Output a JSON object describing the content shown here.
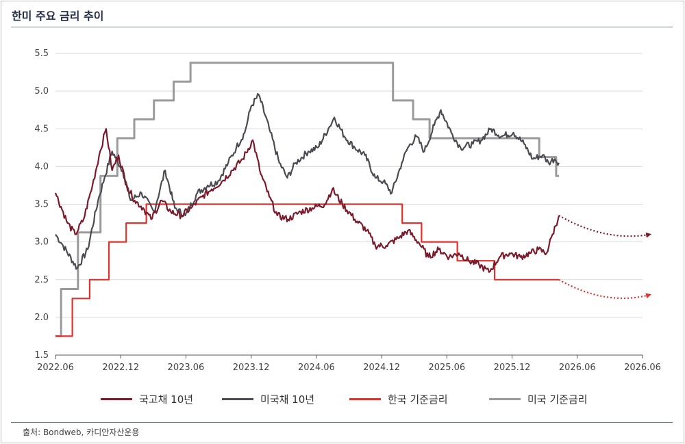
{
  "header": {
    "title": "한미 주요 금리 추이"
  },
  "footer": {
    "source": "출처: Bondweb, 카디안자산운용"
  },
  "colors": {
    "kr10y": "#7a1a2a",
    "us10y": "#4a4a52",
    "krBase": "#e0322d",
    "usBase": "#9a9a9a",
    "grid": "#d9d9d9"
  },
  "chart_data": {
    "type": "line",
    "title": "",
    "xlabel": "",
    "ylabel": "",
    "ylim": [
      1.5,
      5.5
    ],
    "yticks": [
      "1.5",
      "2.0",
      "2.5",
      "3.0",
      "3.5",
      "4.0",
      "4.5",
      "5.0",
      "5.5"
    ],
    "xticks": [
      "2022.06",
      "2022.12",
      "2023.06",
      "2023.12",
      "2024.06",
      "2024.12",
      "2025.06",
      "2025.12",
      "2026.06",
      "2026.06"
    ],
    "grid": "horizontal",
    "legend": "bottom",
    "series": [
      {
        "name": "국고채 10년",
        "kind": "line",
        "x": [
          "2022-06-01",
          "2022-07-01",
          "2022-07-20",
          "2022-08-10",
          "2022-09-01",
          "2022-09-20",
          "2022-10-05",
          "2022-10-20",
          "2022-11-05",
          "2022-11-25",
          "2022-12-15",
          "2023-01-05",
          "2023-01-25",
          "2023-02-20",
          "2023-03-15",
          "2023-04-10",
          "2023-05-05",
          "2023-06-01",
          "2023-06-25",
          "2023-07-20",
          "2023-08-15",
          "2023-09-10",
          "2023-10-05",
          "2023-10-25",
          "2023-11-15",
          "2023-12-05",
          "2024-01-01",
          "2024-02-01",
          "2024-03-01",
          "2024-04-01",
          "2024-04-20",
          "2024-05-15",
          "2024-06-15",
          "2024-07-15",
          "2024-08-05",
          "2024-09-01",
          "2024-10-01",
          "2024-10-25",
          "2024-11-20",
          "2024-12-15",
          "2025-01-10",
          "2025-02-05",
          "2025-03-01",
          "2025-03-25",
          "2025-04-20",
          "2025-05-15",
          "2025-06-10",
          "2025-07-05",
          "2025-08-01",
          "2025-08-25",
          "2025-09-15",
          "2025-10-05",
          "2025-10-20",
          "2025-11-05"
        ],
        "y": [
          3.65,
          3.25,
          3.1,
          3.3,
          3.75,
          4.2,
          4.5,
          3.95,
          4.15,
          3.75,
          3.55,
          3.45,
          3.3,
          3.55,
          3.4,
          3.35,
          3.45,
          3.6,
          3.7,
          3.8,
          3.95,
          4.1,
          4.35,
          3.9,
          3.6,
          3.35,
          3.3,
          3.4,
          3.45,
          3.5,
          3.7,
          3.5,
          3.3,
          3.15,
          2.95,
          2.95,
          3.05,
          3.15,
          3.0,
          2.8,
          2.9,
          2.8,
          2.85,
          2.75,
          2.7,
          2.6,
          2.8,
          2.85,
          2.8,
          2.85,
          2.9,
          2.85,
          3.1,
          3.35
        ]
      },
      {
        "name": "미국채 10년",
        "kind": "line",
        "x": [
          "2022-06-01",
          "2022-06-20",
          "2022-07-25",
          "2022-08-20",
          "2022-09-15",
          "2022-10-01",
          "2022-10-20",
          "2022-11-15",
          "2022-12-05",
          "2023-01-01",
          "2023-02-01",
          "2023-03-01",
          "2023-03-25",
          "2023-04-20",
          "2023-05-20",
          "2023-06-15",
          "2023-07-10",
          "2023-08-05",
          "2023-08-25",
          "2023-09-15",
          "2023-10-01",
          "2023-10-20",
          "2023-11-15",
          "2023-12-10",
          "2023-12-30",
          "2024-01-20",
          "2024-02-20",
          "2024-03-15",
          "2024-04-10",
          "2024-04-25",
          "2024-05-20",
          "2024-06-15",
          "2024-07-10",
          "2024-08-05",
          "2024-08-25",
          "2024-09-15",
          "2024-10-10",
          "2024-10-25",
          "2024-11-15",
          "2024-12-05",
          "2024-12-30",
          "2025-01-15",
          "2025-02-10",
          "2025-03-05",
          "2025-04-05",
          "2025-04-25",
          "2025-05-20",
          "2025-06-15",
          "2025-07-15",
          "2025-08-10",
          "2025-09-01",
          "2025-09-25",
          "2025-10-10",
          "2025-10-25",
          "2025-11-05"
        ],
        "y": [
          3.1,
          2.95,
          2.65,
          2.9,
          3.55,
          3.85,
          4.2,
          3.95,
          3.55,
          3.65,
          3.4,
          3.95,
          3.45,
          3.35,
          3.65,
          3.75,
          3.8,
          4.05,
          4.25,
          4.45,
          4.8,
          4.95,
          4.5,
          4.05,
          3.85,
          4.05,
          4.2,
          4.25,
          4.5,
          4.65,
          4.4,
          4.25,
          4.15,
          3.85,
          3.8,
          3.65,
          4.05,
          4.25,
          4.4,
          4.2,
          4.55,
          4.75,
          4.45,
          4.25,
          4.3,
          4.35,
          4.5,
          4.4,
          4.45,
          4.3,
          4.1,
          4.15,
          4.05,
          4.1,
          4.05
        ]
      },
      {
        "name": "한국 기준금리",
        "kind": "step",
        "x": [
          "2022-06-01",
          "2022-07-13",
          "2022-08-25",
          "2022-10-12",
          "2022-11-24",
          "2023-01-13",
          "2024-10-11",
          "2024-11-28",
          "2025-02-25",
          "2025-05-29",
          "2025-11-05"
        ],
        "y": [
          1.75,
          2.25,
          2.5,
          3.0,
          3.25,
          3.5,
          3.25,
          3.0,
          2.75,
          2.5,
          2.5
        ]
      },
      {
        "name": "미국 기준금리",
        "kind": "step",
        "x": [
          "2022-06-01",
          "2022-06-15",
          "2022-07-27",
          "2022-09-21",
          "2022-11-02",
          "2022-12-14",
          "2023-02-01",
          "2023-03-22",
          "2023-05-03",
          "2023-07-26",
          "2024-09-18",
          "2024-11-07",
          "2024-12-18",
          "2025-09-17",
          "2025-10-29",
          "2025-11-05"
        ],
        "y": [
          1.75,
          2.375,
          3.125,
          3.875,
          4.375,
          4.625,
          4.875,
          5.125,
          5.375,
          5.375,
          4.875,
          4.625,
          4.375,
          4.125,
          3.875,
          3.875
        ]
      }
    ],
    "forecasts": [
      {
        "of": "국고채 10년",
        "x": [
          "2025-11-05",
          "2026-03-01",
          "2026-06-20"
        ],
        "y": [
          3.35,
          3.05,
          3.1
        ]
      },
      {
        "of": "한국 기준금리",
        "x": [
          "2025-11-05",
          "2026-03-01",
          "2026-06-20"
        ],
        "y": [
          2.5,
          2.2,
          2.3
        ]
      }
    ]
  }
}
